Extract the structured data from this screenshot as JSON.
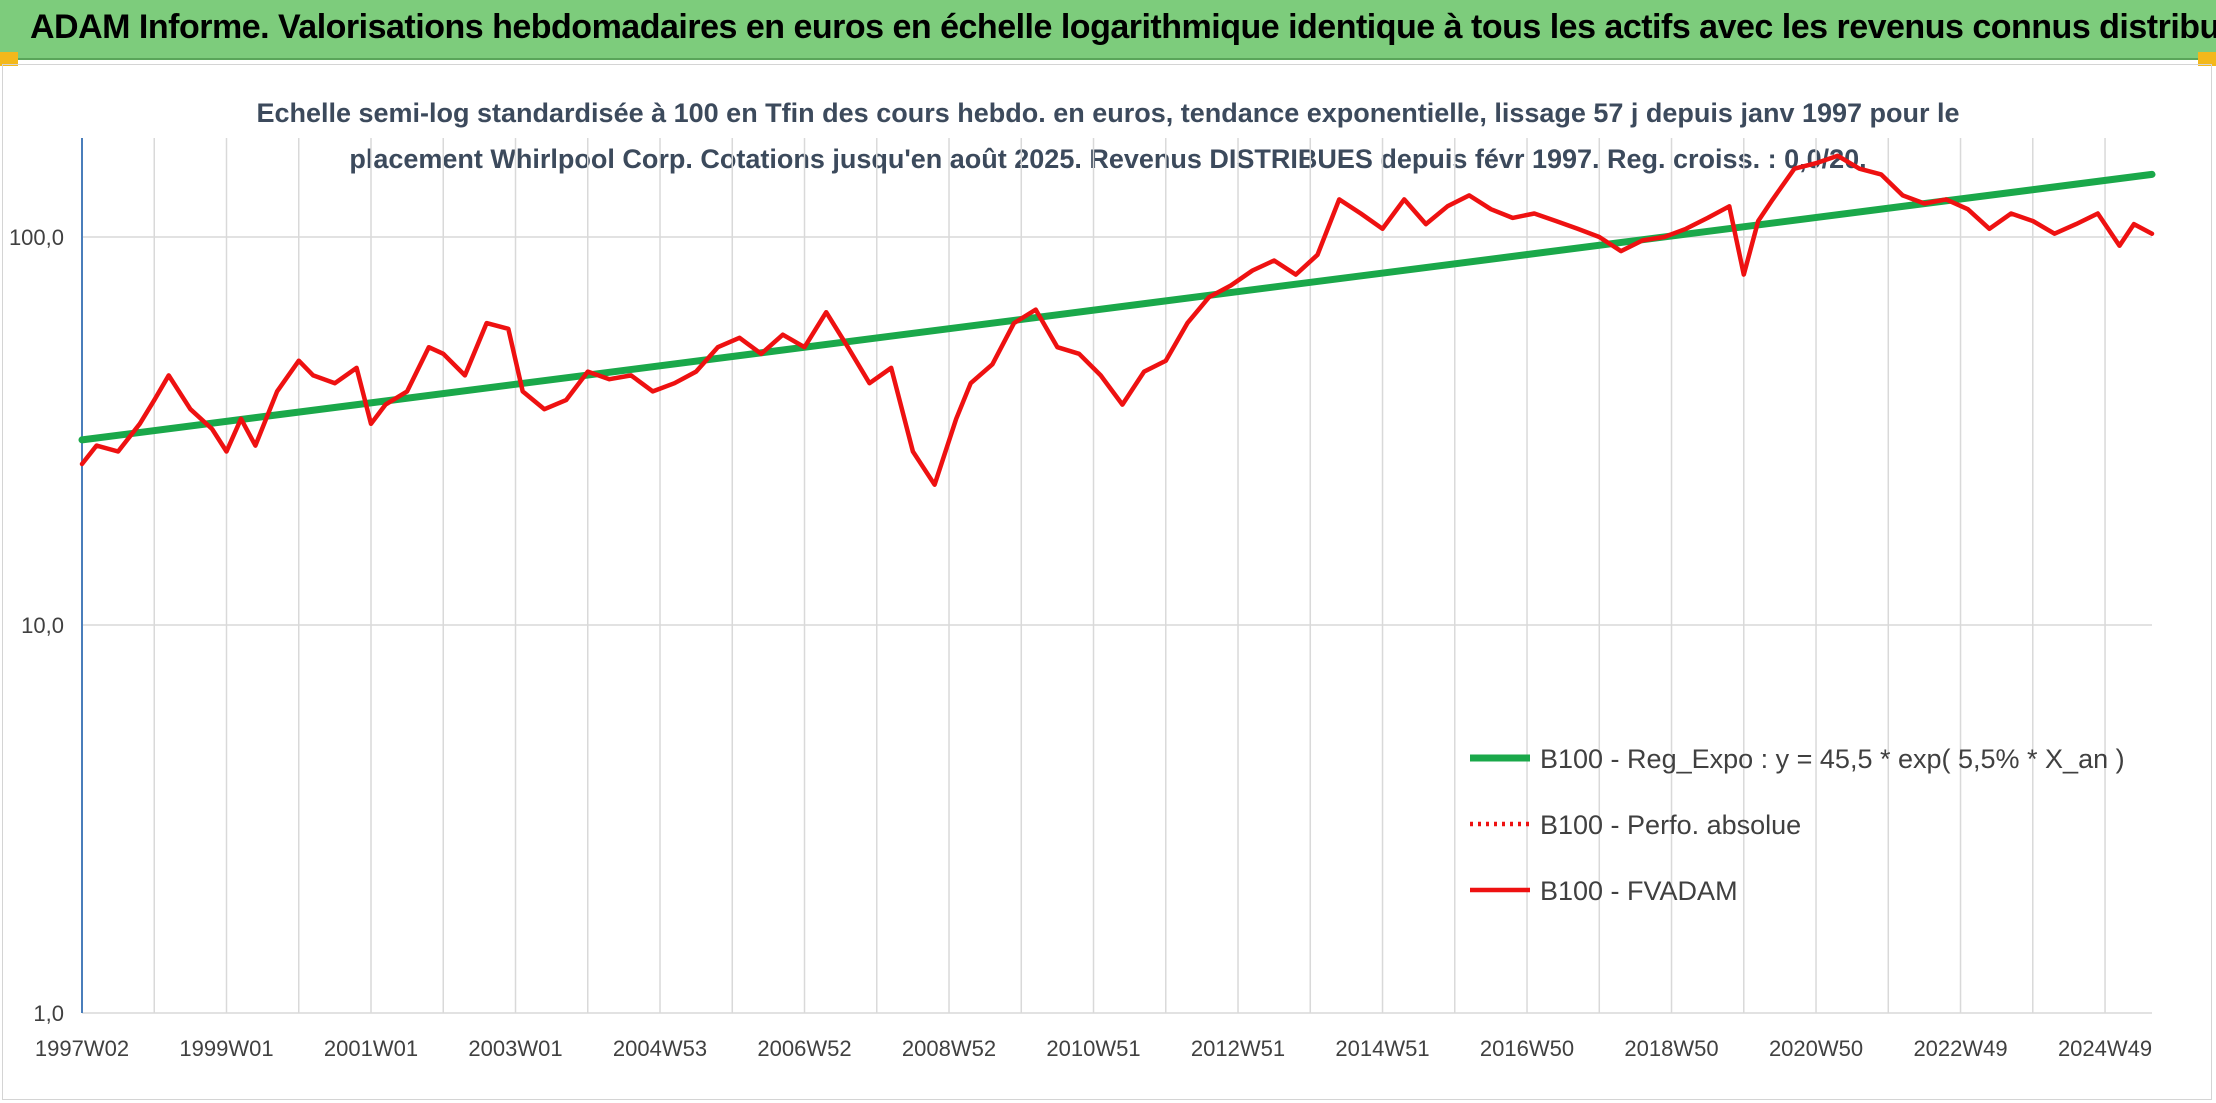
{
  "header": {
    "title": "ADAM Informe. Valorisations hebdomadaires en euros en échelle logarithmique identique à tous les actifs avec les revenus connus distribués"
  },
  "colors": {
    "header_bg": "#7dcc7c",
    "trend": "#1aa84a",
    "fvadam": "#ee1111",
    "perfo": "#ee1111",
    "grid": "#d9d9d9",
    "corner": "#f3b81b"
  },
  "chart_data": {
    "type": "line",
    "title_line1": "Echelle semi-log standardisée à 100 en Tfin des cours hebdo. en euros, tendance exponentielle, lissage 57 j depuis janv 1997 pour le",
    "title_line2": "placement Whirlpool Corp. Cotations jusqu'en août 2025. Revenus DISTRIBUES depuis févr 1997. Reg. croiss. : 0,0/20.",
    "y_scale": "log",
    "ylim": [
      1,
      180
    ],
    "y_ticks": [
      {
        "value": 1,
        "label": "1,0"
      },
      {
        "value": 10,
        "label": "10,0"
      },
      {
        "value": 100,
        "label": "100,0"
      }
    ],
    "x_range": [
      1997.0,
      2025.65
    ],
    "x_ticks": [
      {
        "pos": 1997.0,
        "label": "1997W02"
      },
      {
        "pos": 1999.0,
        "label": "1999W01"
      },
      {
        "pos": 2001.0,
        "label": "2001W01"
      },
      {
        "pos": 2003.0,
        "label": "2003W01"
      },
      {
        "pos": 2005.0,
        "label": "2004W53"
      },
      {
        "pos": 2007.0,
        "label": "2006W52"
      },
      {
        "pos": 2009.0,
        "label": "2008W52"
      },
      {
        "pos": 2011.0,
        "label": "2010W51"
      },
      {
        "pos": 2013.0,
        "label": "2012W51"
      },
      {
        "pos": 2015.0,
        "label": "2014W51"
      },
      {
        "pos": 2017.0,
        "label": "2016W50"
      },
      {
        "pos": 2019.0,
        "label": "2018W50"
      },
      {
        "pos": 2021.0,
        "label": "2020W50"
      },
      {
        "pos": 2023.0,
        "label": "2022W49"
      },
      {
        "pos": 2025.0,
        "label": "2024W49"
      }
    ],
    "grid": true,
    "legend_position": "bottom-right",
    "series": [
      {
        "name": "B100 - Reg_Expo : y = 45,5 * exp( 5,5% *  X_an )",
        "style": "solid-thick",
        "color": "#1aa84a",
        "x": [
          1997.0,
          2025.65
        ],
        "y": [
          30.0,
          145.0
        ]
      },
      {
        "name": "B100 - Perfo. absolue",
        "style": "dotted",
        "color": "#ee1111",
        "x": [],
        "y": []
      },
      {
        "name": "B100 - FVADAM",
        "style": "solid",
        "color": "#ee1111",
        "x": [
          1997.0,
          1997.2,
          1997.5,
          1997.8,
          1998.0,
          1998.2,
          1998.5,
          1998.8,
          1999.0,
          1999.2,
          1999.4,
          1999.7,
          2000.0,
          2000.2,
          2000.5,
          2000.8,
          2001.0,
          2001.2,
          2001.5,
          2001.8,
          2002.0,
          2002.3,
          2002.6,
          2002.9,
          2003.1,
          2003.4,
          2003.7,
          2004.0,
          2004.3,
          2004.6,
          2004.9,
          2005.2,
          2005.5,
          2005.8,
          2006.1,
          2006.4,
          2006.7,
          2007.0,
          2007.3,
          2007.6,
          2007.9,
          2008.2,
          2008.5,
          2008.8,
          2009.1,
          2009.3,
          2009.6,
          2009.9,
          2010.2,
          2010.5,
          2010.8,
          2011.1,
          2011.4,
          2011.7,
          2012.0,
          2012.3,
          2012.6,
          2012.9,
          2013.2,
          2013.5,
          2013.8,
          2014.1,
          2014.4,
          2014.7,
          2015.0,
          2015.3,
          2015.6,
          2015.9,
          2016.2,
          2016.5,
          2016.8,
          2017.1,
          2017.4,
          2017.7,
          2018.0,
          2018.3,
          2018.6,
          2018.9,
          2019.2,
          2019.5,
          2019.8,
          2020.0,
          2020.2,
          2020.4,
          2020.7,
          2021.0,
          2021.3,
          2021.6,
          2021.9,
          2022.2,
          2022.5,
          2022.8,
          2023.1,
          2023.4,
          2023.7,
          2024.0,
          2024.3,
          2024.6,
          2024.9,
          2025.2,
          2025.4,
          2025.65
        ],
        "y": [
          26,
          29,
          28,
          33,
          38,
          44,
          36,
          32,
          28,
          34,
          29,
          40,
          48,
          44,
          42,
          46,
          33,
          37,
          40,
          52,
          50,
          44,
          60,
          58,
          40,
          36,
          38,
          45,
          43,
          44,
          40,
          42,
          45,
          52,
          55,
          50,
          56,
          52,
          64,
          52,
          42,
          46,
          28,
          23,
          34,
          42,
          47,
          60,
          65,
          52,
          50,
          44,
          37,
          45,
          48,
          60,
          70,
          75,
          82,
          87,
          80,
          90,
          125,
          115,
          105,
          125,
          108,
          120,
          128,
          118,
          112,
          115,
          110,
          105,
          100,
          92,
          98,
          100,
          105,
          112,
          120,
          80,
          110,
          125,
          150,
          155,
          162,
          150,
          145,
          128,
          122,
          125,
          118,
          105,
          115,
          110,
          102,
          108,
          115,
          95,
          108,
          102
        ]
      }
    ]
  }
}
